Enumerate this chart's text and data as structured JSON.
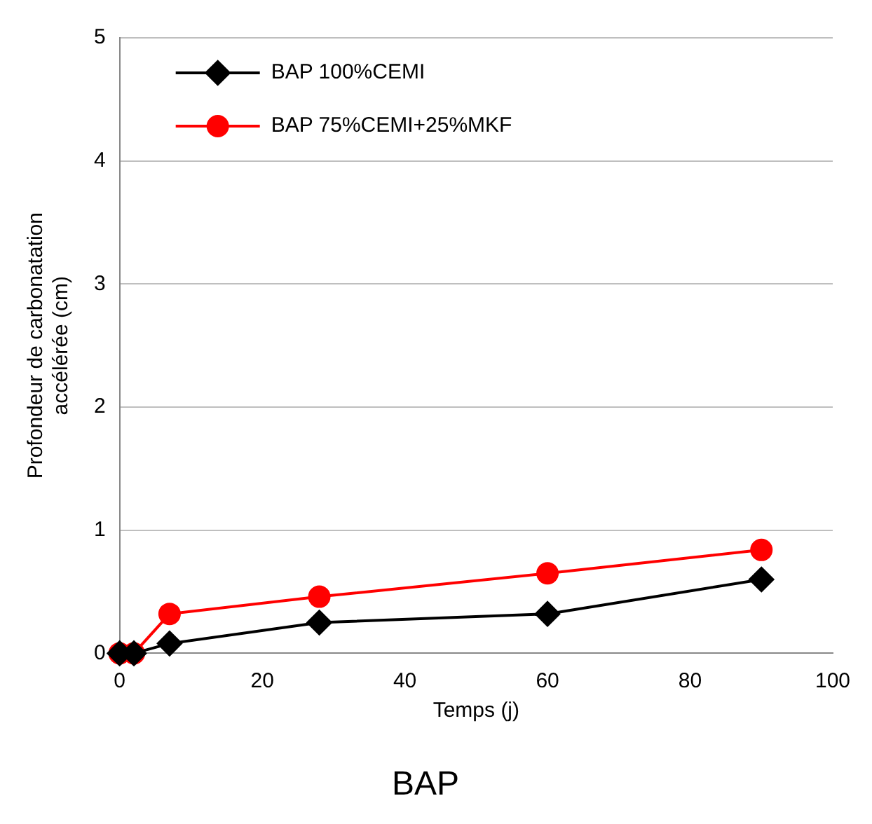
{
  "chart_data": {
    "type": "line",
    "title": "BAP",
    "xlabel": "Temps (j)",
    "ylabel": "Profondeur de carbonatation accélérée (cm)",
    "x": [
      0,
      2,
      7,
      28,
      60,
      90
    ],
    "series": [
      {
        "name": "BAP 100%CEMI",
        "color": "#000000",
        "marker": "diamond",
        "values": [
          0,
          0,
          0.08,
          0.25,
          0.32,
          0.6
        ]
      },
      {
        "name": "BAP 75%CEMI+25%MKF",
        "color": "#ff0000",
        "marker": "circle",
        "values": [
          0,
          0,
          0.32,
          0.46,
          0.65,
          0.84
        ]
      }
    ],
    "xlim": [
      0,
      100
    ],
    "xticks": [
      0,
      20,
      40,
      60,
      80,
      100
    ],
    "ylim": [
      0,
      5
    ],
    "yticks": [
      0,
      1,
      2,
      3,
      4,
      5
    ],
    "grid": "y",
    "legend": "top left"
  }
}
